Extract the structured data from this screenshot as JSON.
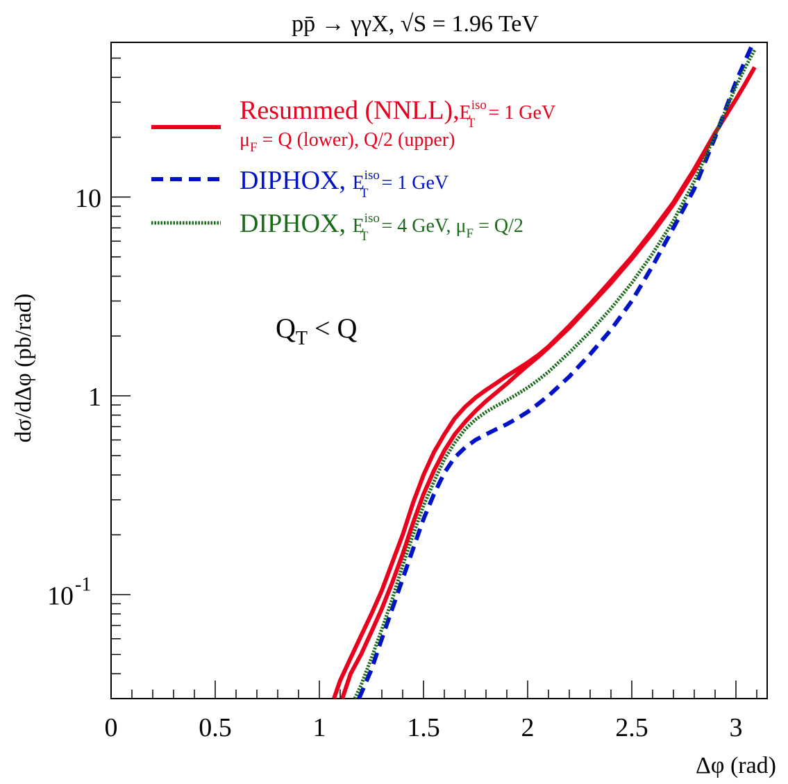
{
  "chart_data": {
    "type": "line",
    "title": "pp̄ → γγX,  √S = 1.96 TeV",
    "xlabel": "Δφ (rad)",
    "ylabel": "dσ/dΔφ (pb/rad)",
    "x_scale": "linear",
    "y_scale": "log",
    "xlim": [
      0,
      3.15
    ],
    "ylim": [
      0.03,
      60
    ],
    "x_ticks": [
      {
        "value": 0,
        "label": "0"
      },
      {
        "value": 0.5,
        "label": "0.5"
      },
      {
        "value": 1,
        "label": "1"
      },
      {
        "value": 1.5,
        "label": "1.5"
      },
      {
        "value": 2,
        "label": "2"
      },
      {
        "value": 2.5,
        "label": "2.5"
      },
      {
        "value": 3,
        "label": "3"
      }
    ],
    "y_ticks": [
      {
        "value": 0.1,
        "label": "10",
        "exponent": "-1"
      },
      {
        "value": 1,
        "label": "1",
        "exponent": ""
      },
      {
        "value": 10,
        "label": "10",
        "exponent": ""
      }
    ],
    "annotation": {
      "main": "Q",
      "sub": "T",
      "rest": " < Q",
      "x": 1.6,
      "y": 2.5
    },
    "legend": {
      "placement": "top-left",
      "entries": [
        {
          "line1": "Resummed (NNLL),",
          "line1_tail": " = 1 GeV",
          "line2": " = Q (lower), Q/2 (upper)"
        },
        {
          "line1": "DIPHOX, ",
          "line1_tail": " = 1 GeV"
        },
        {
          "line1": "DIPHOX, ",
          "line1_tail": " = 4 GeV, ",
          "line1_tail2": " = Q/2"
        }
      ],
      "sym_E": "E",
      "sym_T": "T",
      "sym_iso": "iso",
      "sym_mu": "μ",
      "sym_F": "F"
    },
    "series": [
      {
        "style": "solid",
        "color": "#e8001c",
        "x": [
          1.11,
          1.15,
          1.2,
          1.25,
          1.3,
          1.35,
          1.4,
          1.45,
          1.5,
          1.55,
          1.6,
          1.65,
          1.7,
          1.75,
          1.8,
          1.85,
          1.9,
          1.95,
          2.0,
          2.05,
          2.1,
          2.2,
          2.3,
          2.4,
          2.5,
          2.6,
          2.7,
          2.8,
          2.9,
          3.0,
          3.05,
          3.09
        ],
        "y": [
          0.03,
          0.04,
          0.05,
          0.065,
          0.085,
          0.115,
          0.16,
          0.23,
          0.32,
          0.42,
          0.53,
          0.64,
          0.74,
          0.84,
          0.94,
          1.04,
          1.15,
          1.28,
          1.42,
          1.57,
          1.75,
          2.2,
          2.85,
          3.7,
          4.9,
          6.6,
          9.2,
          13.5,
          21.0,
          31.0,
          38.0,
          45.0
        ]
      },
      {
        "style": "solid",
        "color": "#e8001c",
        "x": [
          1.07,
          1.1,
          1.15,
          1.2,
          1.25,
          1.3,
          1.35,
          1.4,
          1.45,
          1.5,
          1.55,
          1.6,
          1.65,
          1.7,
          1.75,
          1.8,
          1.85,
          1.9,
          1.95,
          2.0,
          2.05,
          2.1,
          2.2,
          2.3,
          2.4,
          2.5,
          2.6,
          2.7,
          2.8,
          2.9
        ],
        "y": [
          0.03,
          0.037,
          0.048,
          0.062,
          0.08,
          0.105,
          0.145,
          0.2,
          0.29,
          0.4,
          0.52,
          0.64,
          0.77,
          0.88,
          0.98,
          1.07,
          1.16,
          1.26,
          1.36,
          1.47,
          1.6,
          1.77,
          2.25,
          2.9,
          3.8,
          5.0,
          6.8,
          9.4,
          13.8,
          21.0
        ]
      },
      {
        "style": "dashed",
        "color": "#0012c8",
        "x": [
          1.19,
          1.25,
          1.3,
          1.35,
          1.4,
          1.45,
          1.5,
          1.55,
          1.6,
          1.65,
          1.7,
          1.75,
          1.8,
          1.85,
          1.9,
          1.95,
          2.0,
          2.05,
          2.1,
          2.2,
          2.3,
          2.4,
          2.5,
          2.6,
          2.7,
          2.8,
          2.9,
          3.0,
          3.05,
          3.09
        ],
        "y": [
          0.03,
          0.042,
          0.06,
          0.085,
          0.12,
          0.17,
          0.24,
          0.32,
          0.41,
          0.49,
          0.55,
          0.6,
          0.64,
          0.68,
          0.72,
          0.77,
          0.83,
          0.91,
          1.0,
          1.25,
          1.62,
          2.15,
          3.0,
          4.5,
          7.0,
          11.0,
          20.0,
          38.0,
          50.0,
          62.0
        ]
      },
      {
        "style": "dotted",
        "color": "#1a6a1a",
        "x": [
          1.17,
          1.2,
          1.25,
          1.3,
          1.35,
          1.4,
          1.45,
          1.5,
          1.55,
          1.6,
          1.65,
          1.7,
          1.75,
          1.8,
          1.85,
          1.9,
          1.95,
          2.0,
          2.05,
          2.1,
          2.2,
          2.3,
          2.4,
          2.5,
          2.6,
          2.7,
          2.8,
          2.9,
          3.0,
          3.05,
          3.09
        ],
        "y": [
          0.03,
          0.035,
          0.048,
          0.067,
          0.095,
          0.14,
          0.2,
          0.28,
          0.37,
          0.48,
          0.58,
          0.68,
          0.76,
          0.83,
          0.89,
          0.95,
          1.02,
          1.1,
          1.2,
          1.32,
          1.65,
          2.1,
          2.75,
          3.7,
          5.2,
          7.6,
          12.0,
          20.5,
          36.0,
          46.0,
          55.0
        ]
      }
    ]
  }
}
